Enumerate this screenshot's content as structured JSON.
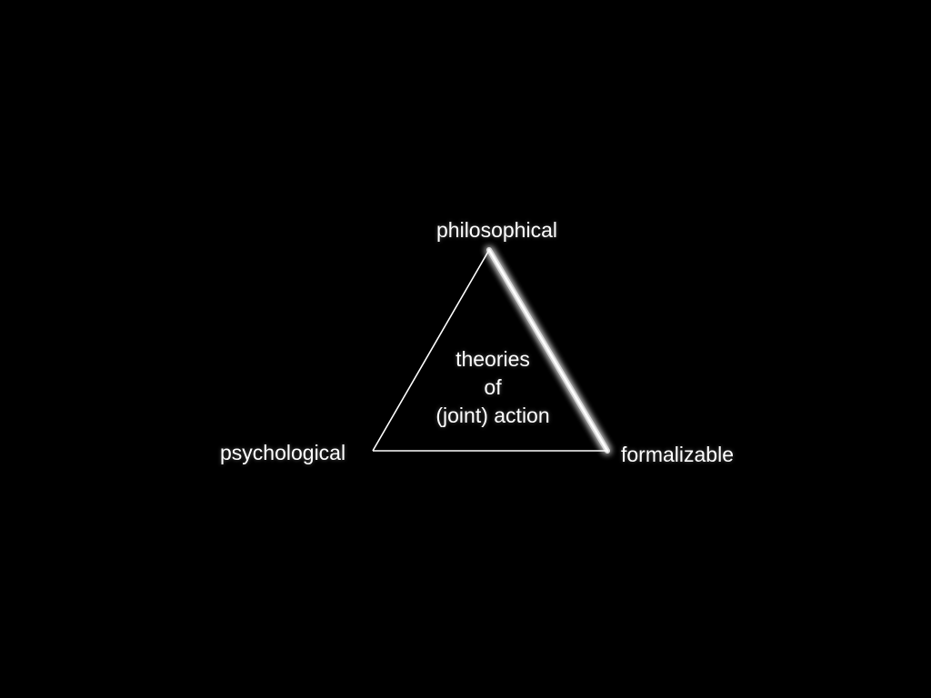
{
  "diagram": {
    "vertices": {
      "top": "philosophical",
      "left": "psychological",
      "right": "formalizable"
    },
    "center": {
      "line1": "theories",
      "line2": "of",
      "line3": "(joint) action"
    },
    "highlighted_edge": "philosophical-formalizable"
  },
  "colors": {
    "background": "#000000",
    "foreground": "#ffffff"
  }
}
